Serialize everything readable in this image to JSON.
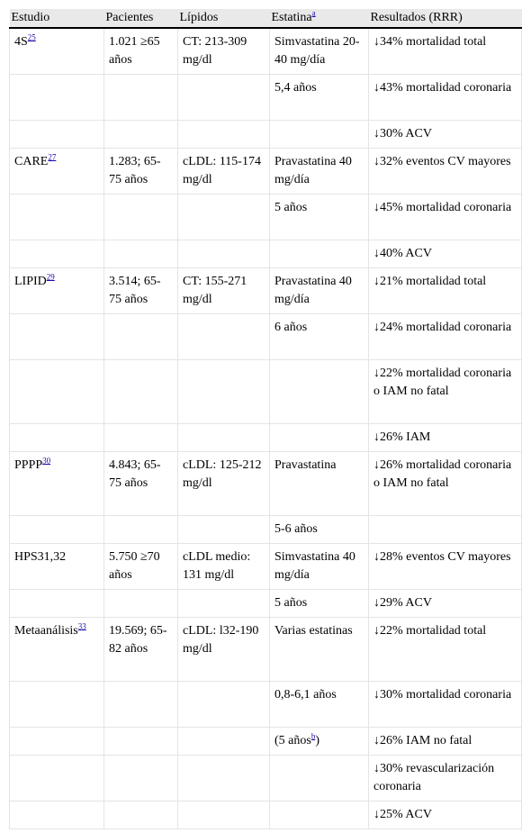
{
  "header": {
    "estudio": "Estudio",
    "pacientes": "Pacientes",
    "lipidos": "Lípidos",
    "estatina": "Estatina",
    "estatina_note": "a",
    "resultados": "Resultados (RRR)"
  },
  "rows": [
    {
      "estudio": "4S",
      "ref": "25",
      "pacientes": "1.021 ≥65 años",
      "lipidos": "CT: 213-309 mg/dl",
      "estatina": "Simvastatina 20-40 mg/día",
      "resultado": "↓34% mortalidad total",
      "h": 2
    },
    {
      "estudio": "",
      "ref": "",
      "pacientes": "",
      "lipidos": "",
      "estatina": "5,4 años",
      "resultado": "↓43% mortalidad coronaria",
      "h": 2
    },
    {
      "estudio": "",
      "ref": "",
      "pacientes": "",
      "lipidos": "",
      "estatina": "",
      "resultado": "↓30% ACV",
      "h": 1
    },
    {
      "estudio": "CARE",
      "ref": "27",
      "pacientes": "1.283; 65-75 años",
      "lipidos": "cLDL: 115-174 mg/dl",
      "estatina": "Pravastatina 40 mg/día",
      "resultado": "↓32% eventos CV mayores",
      "h": 2
    },
    {
      "estudio": "",
      "ref": "",
      "pacientes": "",
      "lipidos": "",
      "estatina": "5 años",
      "resultado": "↓45% mortalidad coronaria",
      "h": 2
    },
    {
      "estudio": "",
      "ref": "",
      "pacientes": "",
      "lipidos": "",
      "estatina": "",
      "resultado": "↓40% ACV",
      "h": 1
    },
    {
      "estudio": "LIPID",
      "ref": "29",
      "pacientes": "3.514; 65-75 años",
      "lipidos": "CT: 155-271 mg/dl",
      "estatina": "Pravastatina 40 mg/día",
      "resultado": "↓21% mortalidad total",
      "h": 2
    },
    {
      "estudio": "",
      "ref": "",
      "pacientes": "",
      "lipidos": "",
      "estatina": "6 años",
      "resultado": "↓24% mortalidad coronaria",
      "h": 2
    },
    {
      "estudio": "",
      "ref": "",
      "pacientes": "",
      "lipidos": "",
      "estatina": "",
      "resultado": "↓22% mortalidad coronaria o IAM no fatal",
      "h": 3
    },
    {
      "estudio": "",
      "ref": "",
      "pacientes": "",
      "lipidos": "",
      "estatina": "",
      "resultado": "↓26% IAM",
      "h": 1
    },
    {
      "estudio": "PPPP",
      "ref": "30",
      "pacientes": "4.843; 65-75 años",
      "lipidos": "cLDL: 125-212 mg/dl",
      "estatina": "Pravastatina",
      "resultado": "↓26% mortalidad coronaria o IAM no fatal",
      "h": 3
    },
    {
      "estudio": "",
      "ref": "",
      "pacientes": "",
      "lipidos": "",
      "estatina": "5-6 años",
      "resultado": "",
      "h": 1
    },
    {
      "estudio": "HPS31,32",
      "ref": "",
      "pacientes": "5.750 ≥70 años",
      "lipidos": "cLDL medio: 131 mg/dl",
      "estatina": "Simvastatina 40 mg/día",
      "resultado": "↓28% eventos CV mayores",
      "h": 2
    },
    {
      "estudio": "",
      "ref": "",
      "pacientes": "",
      "lipidos": "",
      "estatina": "5 años",
      "resultado": "↓29% ACV",
      "h": 1
    },
    {
      "estudio": "Metaanálisis",
      "ref": "33",
      "pacientes": "19.569; 65-82 años",
      "lipidos": "cLDL: l32-190 mg/dl",
      "estatina": "Varias estatinas",
      "resultado": "↓22% mortalidad total",
      "h": 3
    },
    {
      "estudio": "",
      "ref": "",
      "pacientes": "",
      "lipidos": "",
      "estatina": "0,8-6,1 años",
      "resultado": "↓30% mortalidad coronaria",
      "h": 2
    },
    {
      "estudio": "",
      "ref": "",
      "pacientes": "",
      "lipidos": "",
      "estatina": "(5 años",
      "estatina_note": "b",
      "estatina_after": ")",
      "resultado": "↓26% IAM no fatal",
      "h": 1
    },
    {
      "estudio": "",
      "ref": "",
      "pacientes": "",
      "lipidos": "",
      "estatina": "",
      "resultado": "↓30% revascularización coronaria",
      "h": 2
    },
    {
      "estudio": "",
      "ref": "",
      "pacientes": "",
      "lipidos": "",
      "estatina": "",
      "resultado": "↓25% ACV",
      "h": 1
    }
  ]
}
